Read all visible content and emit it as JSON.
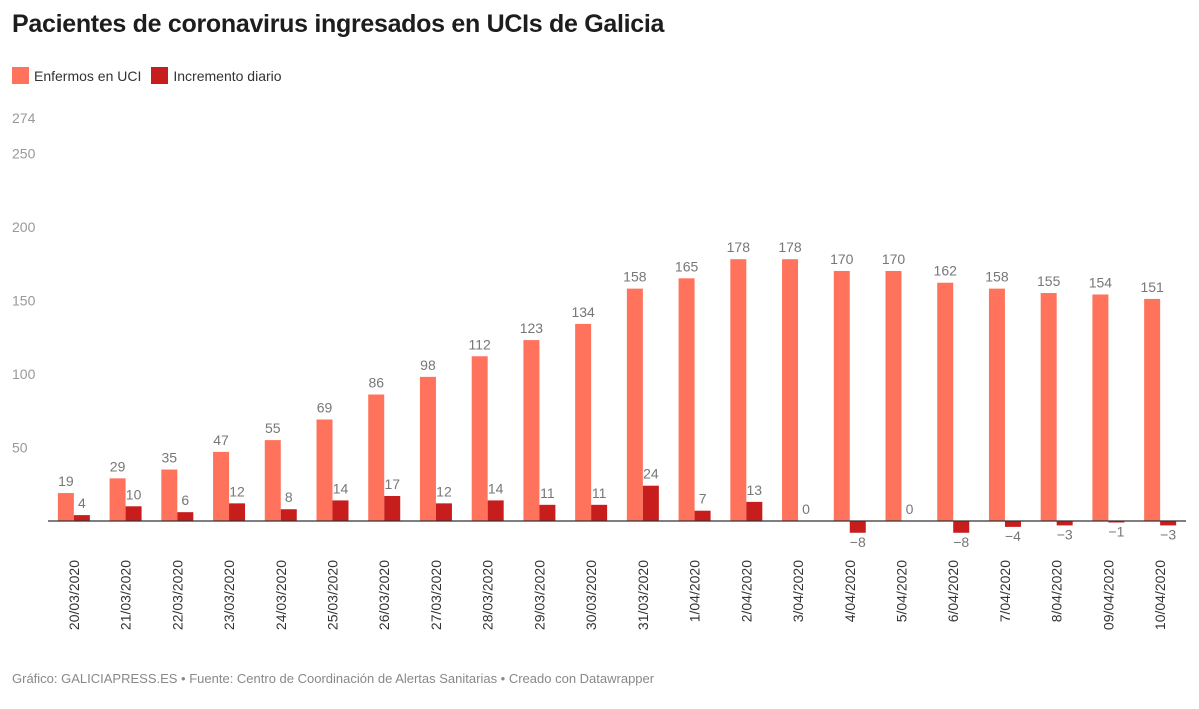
{
  "chart_data": {
    "type": "bar",
    "title": "Pacientes de coronavirus ingresados en UCIs de Galicia",
    "categories": [
      "20/03/2020",
      "21/03/2020",
      "22/03/2020",
      "23/03/2020",
      "24/03/2020",
      "25/03/2020",
      "26/03/2020",
      "27/03/2020",
      "28/03/2020",
      "29/03/2020",
      "30/03/2020",
      "31/03/2020",
      "1/04/2020",
      "2/04/2020",
      "3/04/2020",
      "4/04/2020",
      "5/04/2020",
      "6/04/2020",
      "7/04/2020",
      "8/04/2020",
      "09/04/2020",
      "10/04/2020"
    ],
    "series": [
      {
        "name": "Enfermos en UCI",
        "color": "#ff735c",
        "values": [
          19,
          29,
          35,
          47,
          55,
          69,
          86,
          98,
          112,
          123,
          134,
          158,
          165,
          178,
          178,
          170,
          170,
          162,
          158,
          155,
          154,
          151
        ]
      },
      {
        "name": "Incremento diario",
        "color": "#c71e1d",
        "values": [
          4,
          10,
          6,
          12,
          8,
          14,
          17,
          12,
          14,
          11,
          11,
          24,
          7,
          13,
          0,
          -8,
          0,
          -8,
          -4,
          -3,
          -1,
          -3
        ]
      }
    ],
    "yticks": [
      50,
      100,
      150,
      200,
      250,
      274
    ],
    "ylim": [
      -18,
      274
    ],
    "grid": false,
    "legend": "top-left",
    "xlabel": "",
    "ylabel": ""
  },
  "footer": "Gráfico: GALICIAPRESS.ES • Fuente: Centro de Coordinación de Alertas Sanitarias • Creado con Datawrapper"
}
